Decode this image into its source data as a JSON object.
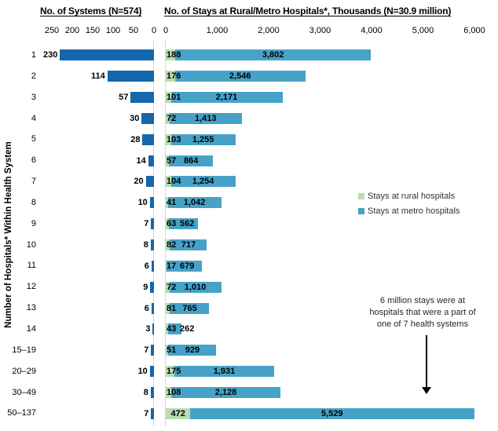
{
  "chart_data": {
    "type": "bar",
    "orientation": "horizontal-paired",
    "header_left": "No. of Systems (N=574)",
    "header_right": "No. of Stays at Rural/Metro Hospitals*, Thousands (N=30.9 million)",
    "ylabel": "Number of Hospitals* Within Health System",
    "categories": [
      "1",
      "2",
      "3",
      "4",
      "5",
      "6",
      "7",
      "8",
      "9",
      "10",
      "11",
      "12",
      "13",
      "14",
      "15–19",
      "20–29",
      "30–49",
      "50–137"
    ],
    "series": [
      {
        "name": "No. of Systems",
        "color": "#1467ad",
        "values": [
          230,
          114,
          57,
          30,
          28,
          14,
          20,
          10,
          7,
          8,
          6,
          9,
          6,
          3,
          7,
          10,
          8,
          7
        ],
        "labels": [
          "230",
          "114",
          "57",
          "30",
          "28",
          "14",
          "20",
          "10",
          "7",
          "8",
          "6",
          "9",
          "6",
          "3",
          "7",
          "10",
          "8",
          "7"
        ]
      },
      {
        "name": "Stays at rural hospitals",
        "color": "#b9dcb0",
        "values": [
          188,
          176,
          101,
          72,
          103,
          57,
          104,
          41,
          63,
          82,
          17,
          72,
          81,
          43,
          51,
          175,
          108,
          472
        ],
        "labels": [
          "188",
          "176",
          "101",
          "72",
          "103",
          "57",
          "104",
          "41",
          "63",
          "82",
          "17",
          "72",
          "81",
          "43",
          "51",
          "175",
          "108",
          "472"
        ]
      },
      {
        "name": "Stays at metro hospitals",
        "color": "#46a2c8",
        "values": [
          3802,
          2546,
          2171,
          1413,
          1255,
          864,
          1254,
          1042,
          562,
          717,
          679,
          1010,
          765,
          262,
          929,
          1931,
          2128,
          5529
        ],
        "labels": [
          "3,802",
          "2,546",
          "2,171",
          "1,413",
          "1,255",
          "864",
          "1,254",
          "1,042",
          "562",
          "717",
          "679",
          "1,010",
          "765",
          "262",
          "929",
          "1,931",
          "2,128",
          "5,529"
        ]
      }
    ],
    "left_axis": {
      "ticks": [
        "250",
        "200",
        "150",
        "100",
        "50",
        "0"
      ],
      "max": 250
    },
    "right_axis": {
      "ticks": [
        "0",
        "1,000",
        "2,000",
        "3,000",
        "4,000",
        "5,000",
        "6,000"
      ],
      "max": 6000
    },
    "legend": [
      {
        "label": "Stays at rural hospitals",
        "color": "#b9dcb0"
      },
      {
        "label": "Stays at metro hospitals",
        "color": "#46a2c8"
      }
    ],
    "annotation": {
      "lines": [
        "6 million stays were at",
        "hospitals that were a part of",
        "one of 7 health systems"
      ]
    },
    "gridline_color": "#d9d9d9"
  }
}
